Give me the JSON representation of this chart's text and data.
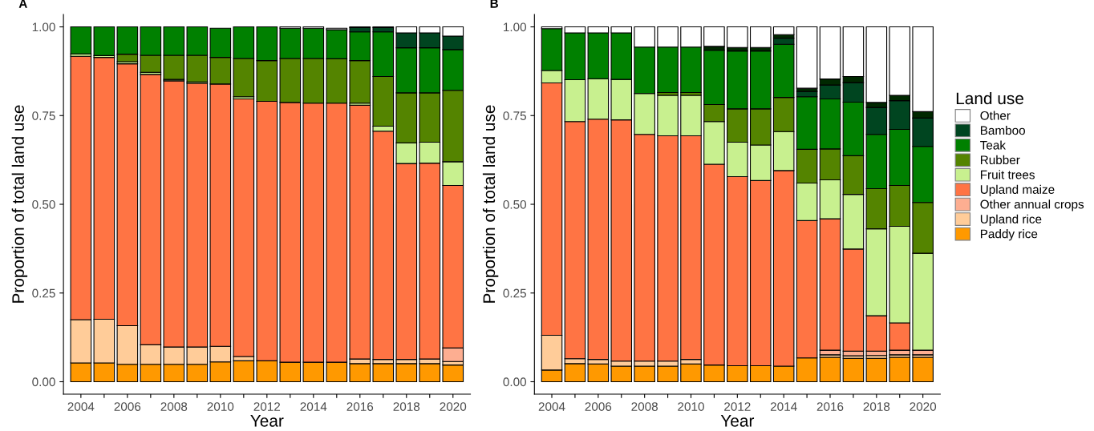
{
  "chart_data": [
    {
      "type": "bar",
      "stacked": true,
      "title": "A",
      "xlabel": "Year",
      "ylabel": "Proportion of total land use",
      "ylim": [
        -0.035,
        1.035
      ],
      "yticks": [
        {
          "value": 0,
          "label": "0.00"
        },
        {
          "value": 0.25,
          "label": "0.25"
        },
        {
          "value": 0.5,
          "label": "0.50"
        },
        {
          "value": 0.75,
          "label": "0.75"
        },
        {
          "value": 1,
          "label": "1.00"
        }
      ],
      "categories": [
        "2004",
        null,
        "2006",
        null,
        "2008",
        null,
        "2010",
        null,
        "2012",
        null,
        "2014",
        null,
        "2016",
        null,
        "2018",
        null,
        "2020"
      ],
      "series": [
        {
          "color": "#ff9900",
          "values": [
            0.053,
            0.053,
            0.049,
            0.049,
            0.049,
            0.049,
            0.056,
            0.059,
            0.059,
            0.055,
            0.055,
            0.055,
            0.051,
            0.051,
            0.051,
            0.051,
            0.047
          ]
        },
        {
          "color": "#ffcc99",
          "values": [
            0.122,
            0.123,
            0.109,
            0.055,
            0.049,
            0.049,
            0.044,
            0.012,
            null,
            null,
            null,
            null,
            0.013,
            0.012,
            0.012,
            0.013,
            0.01
          ]
        },
        {
          "color": "#fdae91",
          "values": [
            null,
            null,
            null,
            null,
            null,
            null,
            null,
            null,
            null,
            null,
            null,
            null,
            null,
            null,
            null,
            null,
            0.038
          ]
        },
        {
          "color": "#ff7444",
          "values": [
            0.742,
            0.738,
            0.738,
            0.762,
            0.75,
            0.743,
            0.739,
            0.726,
            0.731,
            0.732,
            0.73,
            0.73,
            0.715,
            0.643,
            0.552,
            0.552,
            0.458
          ]
        },
        {
          "color": "#c8f08f",
          "values": [
            0.007,
            0.005,
            0.006,
            0.006,
            0.004,
            0.004,
            null,
            0.006,
            null,
            null,
            null,
            null,
            0.006,
            0.014,
            0.058,
            0.059,
            0.067
          ]
        },
        {
          "color": "#548400",
          "values": [
            null,
            null,
            0.021,
            0.048,
            0.068,
            0.075,
            0.075,
            0.108,
            0.115,
            0.124,
            0.126,
            0.125,
            0.12,
            0.14,
            0.141,
            0.139,
            0.201
          ]
        },
        {
          "color": "#008000",
          "values": [
            0.076,
            0.081,
            0.077,
            0.08,
            0.08,
            0.08,
            0.082,
            0.089,
            0.095,
            0.085,
            0.085,
            0.082,
            0.081,
            0.126,
            0.127,
            0.127,
            0.115
          ]
        },
        {
          "color": "#004520",
          "values": [
            null,
            null,
            null,
            null,
            null,
            null,
            null,
            null,
            null,
            null,
            null,
            null,
            0.012,
            0.012,
            0.042,
            0.042,
            0.038
          ]
        },
        {
          "color": "#ffffff",
          "values": [
            null,
            null,
            null,
            null,
            null,
            null,
            null,
            null,
            null,
            0.004,
            0.004,
            0.004,
            0.002,
            0.002,
            0.017,
            0.017,
            0.026
          ]
        }
      ]
    },
    {
      "type": "bar",
      "stacked": true,
      "title": "B",
      "xlabel": "Year",
      "ylabel": "Proportion of total land use",
      "legend": "right",
      "legend_title": "Land use",
      "ylim": [
        -0.035,
        1.035
      ],
      "yticks": [
        {
          "value": 0,
          "label": "0.00"
        },
        {
          "value": 0.25,
          "label": "0.25"
        },
        {
          "value": 0.5,
          "label": "0.50"
        },
        {
          "value": 0.75,
          "label": "0.75"
        },
        {
          "value": 1,
          "label": "1.00"
        }
      ],
      "categories": [
        "2004",
        null,
        "2006",
        null,
        "2008",
        null,
        "2010",
        null,
        "2012",
        null,
        "2014",
        null,
        "2016",
        null,
        "2018",
        null,
        "2020"
      ],
      "series": [
        {
          "name": "Paddy rice",
          "color": "#ff9900",
          "values": [
            0.033,
            0.051,
            0.05,
            0.044,
            0.044,
            0.044,
            0.05,
            0.047,
            0.045,
            0.045,
            0.044,
            0.067,
            0.069,
            0.066,
            0.066,
            0.069,
            0.069
          ]
        },
        {
          "name": "Upland rice",
          "color": "#ffcc99",
          "values": [
            0.098,
            0.014,
            0.013,
            0.014,
            0.014,
            0.014,
            0.013,
            null,
            null,
            null,
            null,
            null,
            0.007,
            0.007,
            0.008,
            0.007,
            0.007
          ]
        },
        {
          "name": "Other annual crops",
          "color": "#fdae91",
          "values": [
            null,
            null,
            null,
            null,
            null,
            null,
            null,
            null,
            null,
            null,
            null,
            null,
            0.013,
            0.013,
            0.012,
            0.013,
            0.013
          ]
        },
        {
          "name": "Upland maize",
          "color": "#ff7444",
          "values": [
            0.711,
            0.668,
            0.677,
            0.68,
            0.639,
            0.635,
            0.63,
            0.566,
            0.533,
            0.522,
            0.551,
            0.387,
            0.37,
            0.288,
            0.1,
            0.077,
            null
          ]
        },
        {
          "name": "Fruit trees",
          "color": "#c8f08f",
          "values": [
            0.035,
            0.118,
            0.114,
            0.114,
            0.115,
            0.114,
            0.114,
            0.12,
            0.097,
            0.1,
            0.11,
            0.106,
            0.11,
            0.154,
            0.245,
            0.272,
            0.273
          ]
        },
        {
          "name": "Rubber",
          "color": "#548400",
          "values": [
            null,
            null,
            null,
            null,
            null,
            0.008,
            0.008,
            0.048,
            0.094,
            0.102,
            0.096,
            0.095,
            0.087,
            0.109,
            0.113,
            0.115,
            0.143
          ]
        },
        {
          "name": "Teak",
          "color": "#008000",
          "values": [
            0.118,
            0.132,
            0.129,
            0.131,
            0.131,
            0.128,
            0.128,
            0.153,
            0.163,
            0.163,
            0.15,
            0.148,
            0.141,
            0.151,
            0.153,
            0.158,
            0.158
          ]
        },
        {
          "name": "Bamboo",
          "color": "#004520",
          "values": [
            null,
            null,
            null,
            null,
            null,
            null,
            null,
            null,
            null,
            null,
            0.017,
            0.015,
            0.039,
            0.055,
            0.076,
            0.081,
            0.08
          ]
        },
        {
          "color": "#002800",
          "values": [
            null,
            null,
            null,
            null,
            null,
            null,
            null,
            0.011,
            0.01,
            0.01,
            0.01,
            0.009,
            0.017,
            0.017,
            0.014,
            0.015,
            0.018
          ]
        },
        {
          "name": "Other",
          "color": "#ffffff",
          "values": [
            0.005,
            0.017,
            0.017,
            0.017,
            0.057,
            0.057,
            0.057,
            0.055,
            0.058,
            0.058,
            0.022,
            0.173,
            0.147,
            0.14,
            0.213,
            0.193,
            0.239
          ]
        }
      ]
    }
  ]
}
